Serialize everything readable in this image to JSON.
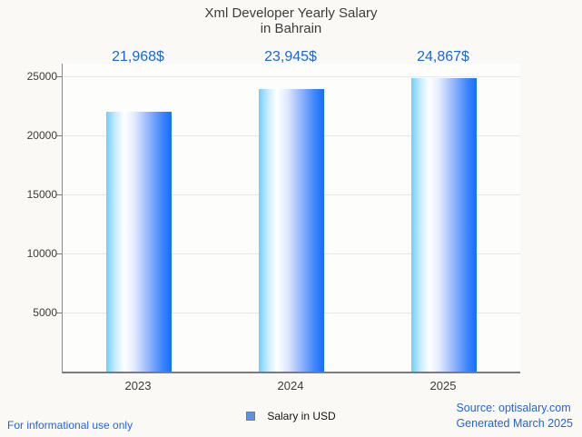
{
  "title": {
    "line1": "Xml Developer Yearly Salary",
    "line2": "in Bahrain"
  },
  "chart_data": {
    "type": "bar",
    "title": "Xml Developer Yearly Salary in Bahrain",
    "categories": [
      "2023",
      "2024",
      "2025"
    ],
    "values": [
      21968,
      23945,
      24867
    ],
    "value_labels": [
      "21,968$",
      "23,945$",
      "24,867$"
    ],
    "series_name": "Salary in USD",
    "xlabel": "",
    "ylabel": "",
    "ylim": [
      0,
      26000
    ],
    "yticks": [
      5000,
      10000,
      15000,
      20000,
      25000
    ],
    "grid": true,
    "legend_position": "bottom-center",
    "bar_color_gradient": [
      "#6fcefb",
      "#ffffff",
      "#156efd"
    ]
  },
  "footer": {
    "note": "For informational use only",
    "legend_label": "Salary in USD",
    "source_line1": "Source: optisalary.com",
    "source_line2": "Generated March 2025"
  },
  "colors": {
    "value_label": "#1b66e0",
    "footer_blue": "#2264d8",
    "axis": "#7b7b7b",
    "gridline": "#e7e7e4",
    "title_text": "#3d3d3d",
    "legend_swatch": "#5793ea",
    "background": "#faf9f6"
  }
}
